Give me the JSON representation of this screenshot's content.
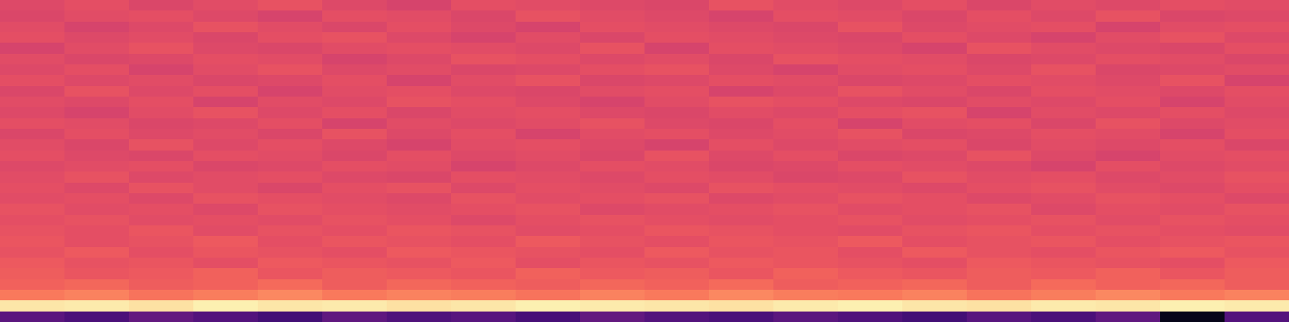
{
  "chart_data": {
    "type": "heatmap",
    "color": "magma",
    "tick_labels": false,
    "zlim": [
      0,
      1
    ],
    "cells": [
      [
        0.6,
        0.62,
        0.59,
        0.61,
        0.63,
        0.6,
        0.58,
        0.62,
        0.61,
        0.6,
        0.59,
        0.63,
        0.61,
        0.6,
        0.62,
        0.59,
        0.61,
        0.6,
        0.62,
        0.61
      ],
      [
        0.59,
        0.61,
        0.62,
        0.6,
        0.58,
        0.62,
        0.61,
        0.59,
        0.63,
        0.61,
        0.6,
        0.58,
        0.62,
        0.61,
        0.59,
        0.62,
        0.6,
        0.63,
        0.59,
        0.6
      ],
      [
        0.61,
        0.58,
        0.6,
        0.63,
        0.61,
        0.59,
        0.62,
        0.6,
        0.58,
        0.62,
        0.61,
        0.6,
        0.59,
        0.63,
        0.6,
        0.61,
        0.62,
        0.58,
        0.61,
        0.62
      ],
      [
        0.62,
        0.6,
        0.61,
        0.59,
        0.62,
        0.63,
        0.6,
        0.58,
        0.61,
        0.59,
        0.62,
        0.61,
        0.6,
        0.59,
        0.62,
        0.6,
        0.58,
        0.61,
        0.63,
        0.6
      ],
      [
        0.58,
        0.61,
        0.63,
        0.6,
        0.59,
        0.61,
        0.62,
        0.61,
        0.6,
        0.63,
        0.58,
        0.62,
        0.61,
        0.6,
        0.58,
        0.63,
        0.61,
        0.6,
        0.59,
        0.62
      ],
      [
        0.61,
        0.59,
        0.6,
        0.62,
        0.61,
        0.58,
        0.6,
        0.63,
        0.62,
        0.6,
        0.61,
        0.59,
        0.63,
        0.62,
        0.61,
        0.59,
        0.6,
        0.62,
        0.61,
        0.59
      ],
      [
        0.6,
        0.62,
        0.58,
        0.61,
        0.63,
        0.6,
        0.61,
        0.59,
        0.6,
        0.62,
        0.63,
        0.6,
        0.58,
        0.61,
        0.62,
        0.6,
        0.63,
        0.59,
        0.6,
        0.61
      ],
      [
        0.62,
        0.6,
        0.61,
        0.59,
        0.6,
        0.62,
        0.58,
        0.61,
        0.63,
        0.59,
        0.6,
        0.62,
        0.61,
        0.59,
        0.6,
        0.62,
        0.61,
        0.6,
        0.63,
        0.58
      ],
      [
        0.59,
        0.63,
        0.6,
        0.62,
        0.58,
        0.61,
        0.62,
        0.6,
        0.59,
        0.61,
        0.62,
        0.58,
        0.6,
        0.63,
        0.61,
        0.59,
        0.62,
        0.61,
        0.6,
        0.62
      ],
      [
        0.61,
        0.6,
        0.62,
        0.58,
        0.61,
        0.6,
        0.63,
        0.62,
        0.6,
        0.58,
        0.61,
        0.63,
        0.62,
        0.6,
        0.59,
        0.61,
        0.6,
        0.62,
        0.58,
        0.61
      ],
      [
        0.6,
        0.58,
        0.61,
        0.63,
        0.6,
        0.62,
        0.59,
        0.61,
        0.62,
        0.6,
        0.59,
        0.61,
        0.6,
        0.62,
        0.63,
        0.58,
        0.61,
        0.6,
        0.62,
        0.6
      ],
      [
        0.62,
        0.61,
        0.59,
        0.6,
        0.62,
        0.58,
        0.61,
        0.6,
        0.61,
        0.63,
        0.6,
        0.59,
        0.62,
        0.58,
        0.61,
        0.62,
        0.59,
        0.63,
        0.6,
        0.61
      ],
      [
        0.59,
        0.62,
        0.6,
        0.61,
        0.59,
        0.63,
        0.6,
        0.62,
        0.58,
        0.61,
        0.62,
        0.6,
        0.61,
        0.63,
        0.59,
        0.6,
        0.62,
        0.61,
        0.58,
        0.62
      ],
      [
        0.61,
        0.59,
        0.63,
        0.6,
        0.62,
        0.6,
        0.58,
        0.61,
        0.62,
        0.6,
        0.58,
        0.62,
        0.6,
        0.61,
        0.62,
        0.59,
        0.61,
        0.6,
        0.62,
        0.59
      ],
      [
        0.62,
        0.6,
        0.59,
        0.62,
        0.61,
        0.59,
        0.62,
        0.6,
        0.61,
        0.59,
        0.63,
        0.6,
        0.62,
        0.59,
        0.6,
        0.63,
        0.6,
        0.58,
        0.61,
        0.62
      ],
      [
        0.6,
        0.61,
        0.62,
        0.59,
        0.6,
        0.62,
        0.61,
        0.58,
        0.6,
        0.62,
        0.61,
        0.59,
        0.6,
        0.62,
        0.61,
        0.6,
        0.58,
        0.62,
        0.6,
        0.61
      ],
      [
        0.61,
        0.63,
        0.6,
        0.61,
        0.62,
        0.6,
        0.59,
        0.62,
        0.61,
        0.6,
        0.62,
        0.61,
        0.59,
        0.6,
        0.63,
        0.61,
        0.62,
        0.6,
        0.61,
        0.63
      ],
      [
        0.62,
        0.6,
        0.63,
        0.61,
        0.59,
        0.62,
        0.63,
        0.6,
        0.62,
        0.61,
        0.6,
        0.63,
        0.62,
        0.61,
        0.6,
        0.62,
        0.63,
        0.61,
        0.6,
        0.62
      ],
      [
        0.61,
        0.62,
        0.6,
        0.63,
        0.62,
        0.61,
        0.6,
        0.63,
        0.61,
        0.62,
        0.63,
        0.6,
        0.61,
        0.63,
        0.62,
        0.6,
        0.61,
        0.63,
        0.62,
        0.6
      ],
      [
        0.63,
        0.61,
        0.62,
        0.6,
        0.63,
        0.62,
        0.61,
        0.62,
        0.63,
        0.6,
        0.61,
        0.62,
        0.63,
        0.61,
        0.62,
        0.63,
        0.6,
        0.62,
        0.61,
        0.63
      ],
      [
        0.62,
        0.63,
        0.61,
        0.62,
        0.61,
        0.63,
        0.62,
        0.6,
        0.62,
        0.63,
        0.62,
        0.61,
        0.62,
        0.63,
        0.61,
        0.62,
        0.63,
        0.61,
        0.63,
        0.62
      ],
      [
        0.63,
        0.62,
        0.64,
        0.61,
        0.63,
        0.62,
        0.64,
        0.63,
        0.61,
        0.62,
        0.64,
        0.63,
        0.62,
        0.61,
        0.63,
        0.64,
        0.62,
        0.63,
        0.62,
        0.61
      ],
      [
        0.64,
        0.62,
        0.63,
        0.65,
        0.62,
        0.64,
        0.63,
        0.62,
        0.65,
        0.63,
        0.62,
        0.64,
        0.63,
        0.65,
        0.62,
        0.63,
        0.64,
        0.62,
        0.63,
        0.64
      ],
      [
        0.63,
        0.65,
        0.62,
        0.64,
        0.63,
        0.62,
        0.65,
        0.64,
        0.63,
        0.62,
        0.65,
        0.63,
        0.64,
        0.62,
        0.65,
        0.63,
        0.62,
        0.64,
        0.65,
        0.63
      ],
      [
        0.65,
        0.63,
        0.64,
        0.62,
        0.65,
        0.64,
        0.63,
        0.65,
        0.62,
        0.64,
        0.63,
        0.65,
        0.64,
        0.63,
        0.62,
        0.65,
        0.64,
        0.63,
        0.62,
        0.65
      ],
      [
        0.66,
        0.64,
        0.65,
        0.67,
        0.64,
        0.66,
        0.65,
        0.64,
        0.67,
        0.65,
        0.66,
        0.64,
        0.67,
        0.65,
        0.64,
        0.66,
        0.65,
        0.67,
        0.64,
        0.66
      ],
      [
        0.67,
        0.68,
        0.66,
        0.67,
        0.69,
        0.66,
        0.68,
        0.67,
        0.66,
        0.68,
        0.67,
        0.69,
        0.66,
        0.67,
        0.68,
        0.66,
        0.69,
        0.67,
        0.68,
        0.66
      ],
      [
        0.72,
        0.74,
        0.71,
        0.73,
        0.75,
        0.72,
        0.74,
        0.73,
        0.71,
        0.74,
        0.72,
        0.75,
        0.73,
        0.72,
        0.74,
        0.71,
        0.73,
        0.75,
        0.72,
        0.74
      ],
      [
        0.95,
        0.96,
        0.94,
        0.97,
        0.95,
        0.96,
        0.94,
        0.95,
        0.97,
        0.96,
        0.95,
        0.94,
        0.96,
        0.97,
        0.95,
        0.94,
        0.96,
        0.95,
        0.97,
        0.96
      ],
      [
        0.28,
        0.24,
        0.3,
        0.26,
        0.22,
        0.29,
        0.25,
        0.27,
        0.23,
        0.3,
        0.26,
        0.24,
        0.28,
        0.25,
        0.22,
        0.27,
        0.24,
        0.29,
        0.05,
        0.26
      ]
    ]
  }
}
